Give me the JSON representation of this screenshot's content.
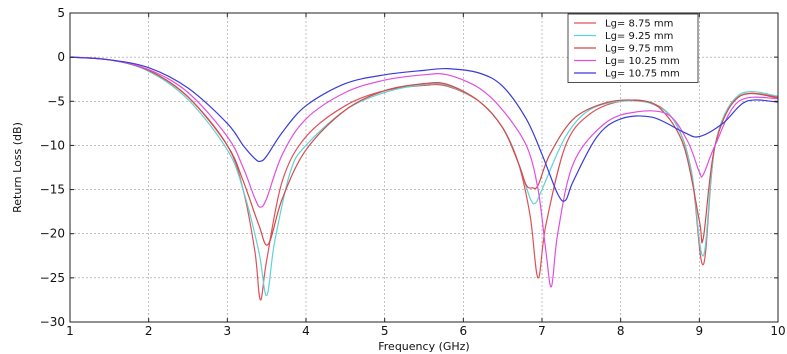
{
  "chart_data": {
    "type": "line",
    "xlabel": "Frequency (GHz)",
    "ylabel": "Return Loss (dB)",
    "xlim": [
      1,
      10
    ],
    "ylim": [
      -30,
      5
    ],
    "xticks": [
      1,
      2,
      3,
      4,
      5,
      6,
      7,
      8,
      9,
      10
    ],
    "yticks": [
      5,
      0,
      -5,
      -10,
      -15,
      -20,
      -25,
      -30
    ],
    "grid": true,
    "legend_position": "top-right",
    "series": [
      {
        "name": "Lg= 8.75 mm",
        "color": "#e0505a",
        "x": [
          1,
          1.5,
          2,
          2.5,
          3,
          3.2,
          3.35,
          3.42,
          3.5,
          3.7,
          4,
          4.5,
          5,
          5.5,
          5.8,
          6.2,
          6.5,
          6.7,
          6.85,
          6.95,
          7.05,
          7.3,
          7.6,
          8,
          8.4,
          8.7,
          8.9,
          9.05,
          9.2,
          9.5,
          10
        ],
        "y": [
          0,
          -0.3,
          -1.5,
          -4.5,
          -10,
          -15,
          -22,
          -27.5,
          -23,
          -14,
          -9,
          -5.5,
          -3.8,
          -3.2,
          -3.3,
          -5,
          -8,
          -12,
          -18,
          -25,
          -19,
          -10,
          -6.5,
          -5,
          -5.2,
          -7.5,
          -13,
          -23.5,
          -10,
          -4.5,
          -4.5
        ]
      },
      {
        "name": "Lg= 9.25 mm",
        "color": "#5fd3d3",
        "x": [
          1,
          1.5,
          2,
          2.5,
          3,
          3.2,
          3.4,
          3.5,
          3.6,
          3.8,
          4,
          4.5,
          5,
          5.5,
          5.8,
          6.2,
          6.5,
          6.7,
          6.85,
          6.92,
          7.0,
          7.3,
          7.6,
          8,
          8.4,
          8.7,
          8.9,
          9.05,
          9.2,
          9.5,
          10
        ],
        "y": [
          0,
          -0.3,
          -1.6,
          -4.8,
          -10.5,
          -15,
          -22,
          -27,
          -21,
          -13,
          -10,
          -6,
          -4,
          -3.1,
          -3.2,
          -5,
          -8,
          -12,
          -16,
          -16.5,
          -15,
          -9,
          -6,
          -5,
          -5.3,
          -7.5,
          -13,
          -22.5,
          -10,
          -4.3,
          -4.4
        ]
      },
      {
        "name": "Lg= 9.75 mm",
        "color": "#d24a4a",
        "x": [
          1,
          1.5,
          2,
          2.5,
          3,
          3.2,
          3.4,
          3.52,
          3.7,
          4,
          4.5,
          5,
          5.5,
          5.8,
          6.2,
          6.5,
          6.7,
          6.8,
          6.88,
          6.95,
          7.1,
          7.4,
          7.8,
          8.2,
          8.5,
          8.8,
          9.0,
          9.05,
          9.2,
          9.5,
          10
        ],
        "y": [
          0,
          -0.3,
          -1.5,
          -4.5,
          -10,
          -14,
          -19,
          -21.2,
          -16,
          -10.5,
          -6,
          -3.8,
          -3,
          -3.1,
          -5,
          -8,
          -12,
          -14.5,
          -14.8,
          -14.5,
          -11,
          -7,
          -5.2,
          -4.9,
          -5.8,
          -10,
          -18.5,
          -20.5,
          -10,
          -4.5,
          -4.6
        ]
      },
      {
        "name": "Lg= 10.25 mm",
        "color": "#e04fe0",
        "x": [
          1,
          1.5,
          2,
          2.5,
          3,
          3.2,
          3.35,
          3.42,
          3.5,
          3.7,
          4,
          4.5,
          5,
          5.5,
          5.8,
          6.2,
          6.5,
          6.8,
          6.95,
          7.05,
          7.12,
          7.2,
          7.4,
          7.8,
          8.2,
          8.6,
          8.85,
          9.0,
          9.05,
          9.2,
          9.5,
          10
        ],
        "y": [
          0,
          -0.3,
          -1.4,
          -4,
          -9,
          -12.5,
          -16,
          -17,
          -16,
          -11,
          -7,
          -4,
          -2.6,
          -2,
          -2,
          -3.5,
          -6,
          -10,
          -15,
          -22,
          -26,
          -20,
          -12,
          -7.5,
          -6.2,
          -6.5,
          -9.5,
          -13,
          -13.3,
          -10,
          -5,
          -4.7
        ]
      },
      {
        "name": "Lg= 10.75 mm",
        "color": "#3b3bd9",
        "x": [
          1,
          1.5,
          2,
          2.5,
          3,
          3.2,
          3.35,
          3.42,
          3.5,
          3.7,
          4,
          4.5,
          5,
          5.5,
          5.8,
          6.2,
          6.5,
          6.8,
          7.0,
          7.2,
          7.3,
          7.4,
          7.7,
          8.0,
          8.4,
          8.8,
          9.0,
          9.3,
          9.6,
          10
        ],
        "y": [
          0,
          -0.3,
          -1.2,
          -3.5,
          -7.5,
          -10,
          -11.5,
          -11.8,
          -11.2,
          -8.5,
          -5.5,
          -3,
          -2,
          -1.5,
          -1.3,
          -1.8,
          -3.3,
          -7,
          -11,
          -15.5,
          -16.2,
          -14,
          -9,
          -7,
          -6.8,
          -8.5,
          -9,
          -7.5,
          -5,
          -5.1
        ]
      }
    ]
  }
}
